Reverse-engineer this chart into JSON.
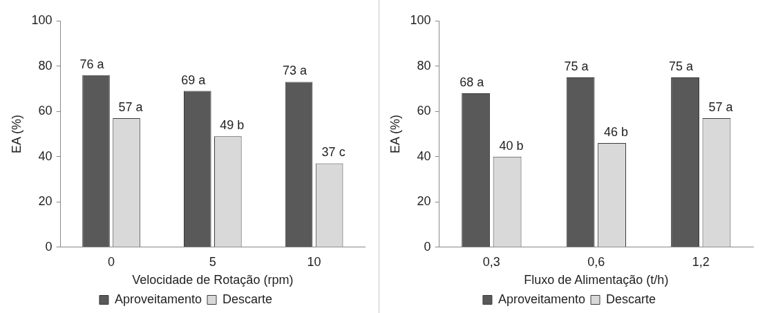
{
  "chart_data": [
    {
      "type": "bar",
      "xlabel": "Velocidade de Rotação (rpm)",
      "ylabel": "EA (%)",
      "categories": [
        "0",
        "5",
        "10"
      ],
      "ylim": [
        0,
        100
      ],
      "yticks": [
        0,
        20,
        40,
        60,
        80,
        100
      ],
      "grid": false,
      "legend": "bottom",
      "series": [
        {
          "name": "Aproveitamento",
          "color": "#595959",
          "values": [
            76,
            69,
            73
          ],
          "value_labels": [
            "76 a",
            "69 a",
            "73 a"
          ]
        },
        {
          "name": "Descarte",
          "color": "#d9d9d9",
          "values": [
            57,
            49,
            37
          ],
          "value_labels": [
            "57 a",
            "49 b",
            "37 c"
          ]
        }
      ]
    },
    {
      "type": "bar",
      "xlabel": "Fluxo de Alimentação (t/h)",
      "ylabel": "EA (%)",
      "categories": [
        "0,3",
        "0,6",
        "1,2"
      ],
      "ylim": [
        0,
        100
      ],
      "yticks": [
        0,
        20,
        40,
        60,
        80,
        100
      ],
      "grid": false,
      "legend": "bottom",
      "series": [
        {
          "name": "Aproveitamento",
          "color": "#595959",
          "values": [
            68,
            75,
            75
          ],
          "value_labels": [
            "68 a",
            "75 a",
            "75 a"
          ]
        },
        {
          "name": "Descarte",
          "color": "#d9d9d9",
          "values": [
            40,
            46,
            57
          ],
          "value_labels": [
            "40 b",
            "46 b",
            "57 a"
          ]
        }
      ]
    }
  ]
}
